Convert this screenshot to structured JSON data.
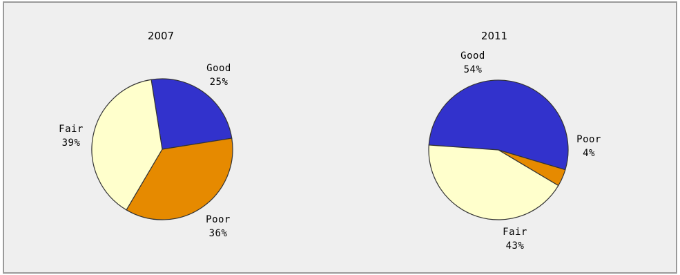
{
  "chart_data": [
    {
      "type": "pie",
      "title": "2007",
      "slices": [
        {
          "label": "Good",
          "value": 25,
          "pct_text": "25%",
          "color": "#3232cc"
        },
        {
          "label": "Poor",
          "value": 36,
          "pct_text": "36%",
          "color": "#e68a00"
        },
        {
          "label": "Fair",
          "value": 39,
          "pct_text": "39%",
          "color": "#ffffcc"
        }
      ]
    },
    {
      "type": "pie",
      "title": "2011",
      "slices": [
        {
          "label": "Good",
          "value": 54,
          "pct_text": "54%",
          "color": "#3232cc"
        },
        {
          "label": "Poor",
          "value": 4,
          "pct_text": "4%",
          "color": "#e68a00"
        },
        {
          "label": "Fair",
          "value": 43,
          "pct_text": "43%",
          "color": "#ffffcc"
        }
      ]
    }
  ]
}
